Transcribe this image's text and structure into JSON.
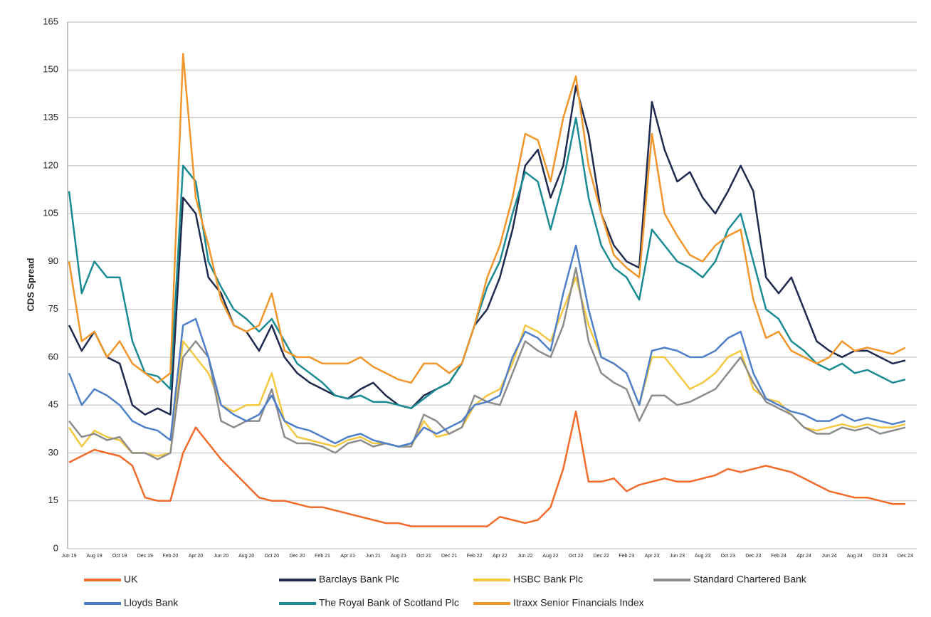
{
  "chart_data": {
    "type": "line",
    "ylabel": "CDS Spread",
    "categories": [
      "Jun 19",
      null,
      "Aug 19",
      null,
      "Oct 19",
      null,
      "Dec 19",
      null,
      "Feb 20",
      null,
      "Apr 20",
      null,
      "Jun 20",
      null,
      "Aug 20",
      null,
      "Oct 20",
      null,
      "Dec 20",
      null,
      "Feb 21",
      null,
      "Apr 21",
      null,
      "Jun 21",
      null,
      "Aug 21",
      null,
      "Oct 21",
      null,
      "Dec 21",
      null,
      "Feb 22",
      null,
      "Apr 22",
      null,
      "Jun 22",
      null,
      "Aug 22",
      null,
      "Oct 22",
      null,
      "Dec 22",
      null,
      "Feb 23",
      null,
      "Apr 23",
      null,
      "Jun 23",
      null,
      "Aug 23",
      null,
      "Oct 23",
      null,
      "Dec 23",
      null,
      "Feb 24",
      null,
      "Apr 24",
      null,
      "Jun 24",
      null,
      "Aug 24",
      null,
      "Oct 24",
      null,
      "Dec 24"
    ],
    "ylim": [
      0,
      165
    ],
    "yticks": [
      0,
      15,
      30,
      45,
      60,
      75,
      90,
      105,
      120,
      135,
      150,
      165
    ],
    "grid": true,
    "series": [
      {
        "name": "UK",
        "color": "#f26b2a",
        "values": [
          27,
          29,
          31,
          30,
          29,
          26,
          16,
          15,
          15,
          30,
          38,
          33,
          28,
          24,
          20,
          16,
          15,
          15,
          14,
          13,
          13,
          12,
          11,
          10,
          9,
          8,
          8,
          7,
          7,
          7,
          7,
          7,
          7,
          7,
          10,
          9,
          8,
          9,
          13,
          25,
          43,
          21,
          21,
          22,
          18,
          20,
          21,
          22,
          21,
          21,
          22,
          23,
          25,
          24,
          25,
          26,
          25,
          24,
          22,
          20,
          18,
          17,
          16,
          16,
          15,
          14,
          14
        ]
      },
      {
        "name": "Barclays Bank Plc",
        "color": "#1f2a4f",
        "values": [
          70,
          62,
          68,
          60,
          58,
          45,
          42,
          44,
          42,
          110,
          105,
          85,
          80,
          70,
          68,
          62,
          70,
          60,
          55,
          52,
          50,
          48,
          47,
          50,
          52,
          48,
          45,
          44,
          48,
          50,
          52,
          58,
          70,
          75,
          85,
          100,
          120,
          125,
          110,
          120,
          145,
          130,
          105,
          95,
          90,
          88,
          140,
          125,
          115,
          118,
          110,
          105,
          112,
          120,
          112,
          85,
          80,
          85,
          75,
          65,
          62,
          60,
          62,
          62,
          60,
          58,
          59
        ]
      },
      {
        "name": "HSBC Bank Plc",
        "color": "#f5c842",
        "values": [
          38,
          32,
          37,
          35,
          34,
          30,
          30,
          29,
          30,
          65,
          60,
          55,
          45,
          43,
          45,
          45,
          55,
          40,
          35,
          34,
          33,
          32,
          34,
          35,
          33,
          33,
          32,
          32,
          40,
          35,
          36,
          38,
          45,
          48,
          50,
          58,
          70,
          68,
          65,
          75,
          85,
          70,
          60,
          58,
          55,
          45,
          60,
          60,
          55,
          50,
          52,
          55,
          60,
          62,
          50,
          47,
          46,
          42,
          38,
          37,
          38,
          39,
          38,
          39,
          38,
          38,
          39
        ]
      },
      {
        "name": "Standard Chartered Bank",
        "color": "#8c8c8c",
        "values": [
          40,
          35,
          36,
          34,
          35,
          30,
          30,
          28,
          30,
          60,
          65,
          60,
          40,
          38,
          40,
          40,
          50,
          35,
          33,
          33,
          32,
          30,
          33,
          34,
          32,
          33,
          32,
          32,
          42,
          40,
          36,
          38,
          48,
          46,
          45,
          55,
          65,
          62,
          60,
          70,
          88,
          65,
          55,
          52,
          50,
          40,
          48,
          48,
          45,
          46,
          48,
          50,
          55,
          60,
          52,
          46,
          44,
          42,
          38,
          36,
          36,
          38,
          37,
          38,
          36,
          37,
          38
        ]
      },
      {
        "name": "Lloyds Bank",
        "color": "#4f7fc9",
        "values": [
          55,
          45,
          50,
          48,
          45,
          40,
          38,
          37,
          34,
          70,
          72,
          60,
          45,
          42,
          40,
          42,
          48,
          40,
          38,
          37,
          35,
          33,
          35,
          36,
          34,
          33,
          32,
          33,
          38,
          36,
          38,
          40,
          45,
          46,
          48,
          60,
          68,
          66,
          62,
          80,
          95,
          75,
          60,
          58,
          55,
          45,
          62,
          63,
          62,
          60,
          60,
          62,
          66,
          68,
          55,
          47,
          45,
          43,
          42,
          40,
          40,
          42,
          40,
          41,
          40,
          39,
          40
        ]
      },
      {
        "name": "The Royal Bank of Scotland Plc",
        "color": "#1a8a93",
        "values": [
          112,
          80,
          90,
          85,
          85,
          65,
          55,
          54,
          50,
          120,
          115,
          90,
          82,
          75,
          72,
          68,
          72,
          65,
          58,
          55,
          52,
          48,
          47,
          48,
          46,
          46,
          45,
          44,
          47,
          50,
          52,
          58,
          70,
          82,
          90,
          105,
          118,
          115,
          100,
          115,
          135,
          110,
          95,
          88,
          85,
          78,
          100,
          95,
          90,
          88,
          85,
          90,
          100,
          105,
          90,
          75,
          72,
          65,
          62,
          58,
          56,
          58,
          55,
          56,
          54,
          52,
          53
        ]
      },
      {
        "name": "Itraxx Senior Financials Index",
        "color": "#f0962a",
        "values": [
          90,
          65,
          68,
          60,
          65,
          58,
          55,
          52,
          55,
          155,
          110,
          95,
          78,
          70,
          68,
          70,
          80,
          62,
          60,
          60,
          58,
          58,
          58,
          60,
          57,
          55,
          53,
          52,
          58,
          58,
          55,
          58,
          70,
          85,
          95,
          110,
          130,
          128,
          115,
          135,
          148,
          120,
          105,
          92,
          88,
          85,
          130,
          105,
          98,
          92,
          90,
          95,
          98,
          100,
          78,
          66,
          68,
          62,
          60,
          58,
          60,
          65,
          62,
          63,
          62,
          61,
          63
        ]
      }
    ]
  }
}
